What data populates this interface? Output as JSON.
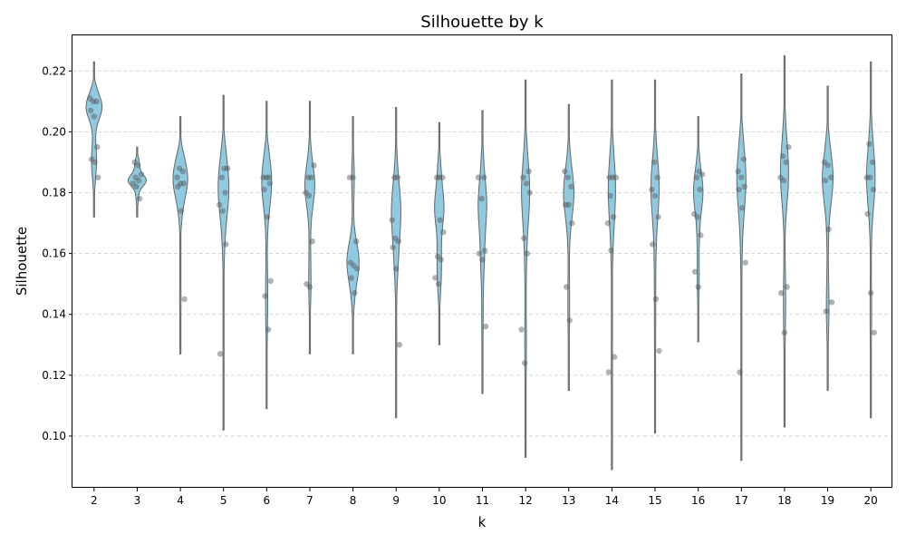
{
  "chart_data": {
    "type": "violin",
    "title": "Silhouette by k",
    "xlabel": "k",
    "ylabel": "Silhouette",
    "ylim": [
      0.083,
      0.232
    ],
    "yticks": [
      0.1,
      0.12,
      0.14,
      0.16,
      0.18,
      0.2,
      0.22
    ],
    "ytick_labels": [
      "0.10",
      "0.12",
      "0.14",
      "0.16",
      "0.18",
      "0.20",
      "0.22"
    ],
    "grid": "y-dashed",
    "colors": {
      "violin_fill": "#8fcae0",
      "violin_edge": "#666666",
      "points": "#555555",
      "grid": "#cccccc"
    },
    "categories": [
      "2",
      "3",
      "4",
      "5",
      "6",
      "7",
      "8",
      "9",
      "10",
      "11",
      "12",
      "13",
      "14",
      "15",
      "16",
      "17",
      "18",
      "19",
      "20"
    ],
    "violins": [
      {
        "k": "2",
        "min": 0.172,
        "max": 0.223,
        "mode": 0.208,
        "width": 0.37
      },
      {
        "k": "3",
        "min": 0.172,
        "max": 0.195,
        "mode": 0.184,
        "width": 0.42
      },
      {
        "k": "4",
        "min": 0.127,
        "max": 0.205,
        "mode": 0.185,
        "width": 0.34
      },
      {
        "k": "5",
        "min": 0.102,
        "max": 0.212,
        "mode": 0.182,
        "width": 0.25
      },
      {
        "k": "6",
        "min": 0.109,
        "max": 0.21,
        "mode": 0.184,
        "width": 0.23
      },
      {
        "k": "7",
        "min": 0.127,
        "max": 0.21,
        "mode": 0.182,
        "width": 0.23
      },
      {
        "k": "8",
        "min": 0.127,
        "max": 0.205,
        "mode": 0.158,
        "width": 0.28
      },
      {
        "k": "9",
        "min": 0.106,
        "max": 0.208,
        "mode": 0.175,
        "width": 0.22
      },
      {
        "k": "10",
        "min": 0.13,
        "max": 0.203,
        "mode": 0.175,
        "width": 0.22
      },
      {
        "k": "11",
        "min": 0.114,
        "max": 0.207,
        "mode": 0.175,
        "width": 0.2
      },
      {
        "k": "12",
        "min": 0.093,
        "max": 0.217,
        "mode": 0.18,
        "width": 0.19
      },
      {
        "k": "13",
        "min": 0.115,
        "max": 0.209,
        "mode": 0.18,
        "width": 0.24
      },
      {
        "k": "14",
        "min": 0.089,
        "max": 0.217,
        "mode": 0.182,
        "width": 0.17
      },
      {
        "k": "15",
        "min": 0.101,
        "max": 0.217,
        "mode": 0.182,
        "width": 0.19
      },
      {
        "k": "16",
        "min": 0.131,
        "max": 0.205,
        "mode": 0.18,
        "width": 0.22
      },
      {
        "k": "17",
        "min": 0.092,
        "max": 0.219,
        "mode": 0.185,
        "width": 0.21
      },
      {
        "k": "18",
        "min": 0.103,
        "max": 0.225,
        "mode": 0.185,
        "width": 0.19
      },
      {
        "k": "19",
        "min": 0.115,
        "max": 0.215,
        "mode": 0.184,
        "width": 0.25
      },
      {
        "k": "20",
        "min": 0.106,
        "max": 0.223,
        "mode": 0.185,
        "width": 0.2
      }
    ],
    "points": [
      {
        "k": "2",
        "values": [
          0.211,
          0.21,
          0.21,
          0.207,
          0.205,
          0.195,
          0.191,
          0.19,
          0.185
        ]
      },
      {
        "k": "3",
        "values": [
          0.19,
          0.189,
          0.186,
          0.185,
          0.184,
          0.183,
          0.182,
          0.178
        ]
      },
      {
        "k": "4",
        "values": [
          0.188,
          0.187,
          0.185,
          0.183,
          0.183,
          0.182,
          0.174,
          0.145
        ]
      },
      {
        "k": "5",
        "values": [
          0.188,
          0.188,
          0.185,
          0.18,
          0.176,
          0.174,
          0.163,
          0.127
        ]
      },
      {
        "k": "6",
        "values": [
          0.185,
          0.185,
          0.185,
          0.183,
          0.181,
          0.172,
          0.151,
          0.146,
          0.135
        ]
      },
      {
        "k": "7",
        "values": [
          0.189,
          0.185,
          0.185,
          0.18,
          0.179,
          0.164,
          0.15,
          0.149
        ]
      },
      {
        "k": "8",
        "values": [
          0.185,
          0.185,
          0.164,
          0.157,
          0.156,
          0.155,
          0.152,
          0.147
        ]
      },
      {
        "k": "9",
        "values": [
          0.185,
          0.185,
          0.171,
          0.165,
          0.164,
          0.162,
          0.155,
          0.13
        ]
      },
      {
        "k": "10",
        "values": [
          0.185,
          0.185,
          0.185,
          0.171,
          0.167,
          0.159,
          0.158,
          0.152,
          0.15
        ]
      },
      {
        "k": "11",
        "values": [
          0.185,
          0.185,
          0.178,
          0.161,
          0.16,
          0.158,
          0.136
        ]
      },
      {
        "k": "12",
        "values": [
          0.187,
          0.185,
          0.183,
          0.18,
          0.165,
          0.16,
          0.135,
          0.124
        ]
      },
      {
        "k": "13",
        "values": [
          0.187,
          0.185,
          0.182,
          0.176,
          0.176,
          0.17,
          0.149,
          0.138
        ]
      },
      {
        "k": "14",
        "values": [
          0.185,
          0.185,
          0.185,
          0.179,
          0.172,
          0.17,
          0.161,
          0.126,
          0.121
        ]
      },
      {
        "k": "15",
        "values": [
          0.19,
          0.185,
          0.181,
          0.179,
          0.172,
          0.163,
          0.145,
          0.128
        ]
      },
      {
        "k": "16",
        "values": [
          0.187,
          0.186,
          0.185,
          0.181,
          0.173,
          0.172,
          0.166,
          0.154,
          0.149
        ]
      },
      {
        "k": "17",
        "values": [
          0.191,
          0.187,
          0.185,
          0.182,
          0.181,
          0.175,
          0.157,
          0.121
        ]
      },
      {
        "k": "18",
        "values": [
          0.195,
          0.192,
          0.19,
          0.185,
          0.184,
          0.149,
          0.147,
          0.134
        ]
      },
      {
        "k": "19",
        "values": [
          0.19,
          0.189,
          0.185,
          0.184,
          0.168,
          0.144,
          0.141
        ]
      },
      {
        "k": "20",
        "values": [
          0.196,
          0.19,
          0.185,
          0.185,
          0.181,
          0.173,
          0.147,
          0.134
        ]
      }
    ]
  }
}
